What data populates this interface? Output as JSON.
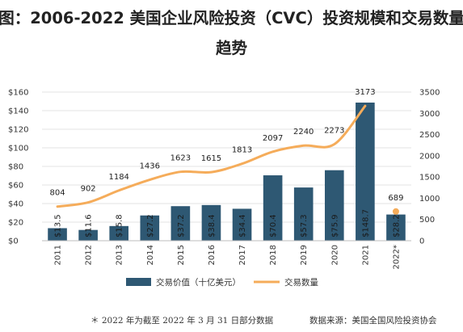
{
  "title": {
    "line1": "图：2006-2022 美国企业风险投资（CVC）投资规模和交易数量",
    "line2": "趋势"
  },
  "chart_data": {
    "type": "bar",
    "categories": [
      "2011",
      "2012",
      "2013",
      "2014",
      "2015",
      "2016",
      "2017",
      "2018",
      "2019",
      "2020",
      "2021",
      "2022*"
    ],
    "series": [
      {
        "name": "交易价值（十亿美元）",
        "type": "bar",
        "axis": "left",
        "values": [
          13.5,
          11.6,
          15.8,
          27.2,
          37.2,
          38.4,
          34.4,
          70.4,
          57.3,
          75.9,
          148.7,
          28.2
        ],
        "labels": [
          "$13.5",
          "$11.6",
          "$15.8",
          "$27.2",
          "$37.2",
          "$38.4",
          "$34.4",
          "$70.4",
          "$57.3",
          "$75.9",
          "$148.7",
          "$28.2"
        ]
      },
      {
        "name": "交易数量",
        "type": "line",
        "axis": "right",
        "values": [
          804,
          902,
          1184,
          1436,
          1623,
          1615,
          1813,
          2097,
          2240,
          2273,
          3173,
          null
        ],
        "labels": [
          "804",
          "902",
          "1184",
          "1436",
          "1623",
          "1615",
          "1813",
          "2097",
          "2240",
          "2273",
          "3173",
          ""
        ]
      },
      {
        "name": "",
        "type": "point",
        "axis": "right",
        "values": [
          null,
          null,
          null,
          null,
          null,
          null,
          null,
          null,
          null,
          null,
          null,
          689
        ],
        "labels": [
          "",
          "",
          "",
          "",
          "",
          "",
          "",
          "",
          "",
          "",
          "",
          "689"
        ]
      }
    ],
    "y_left": {
      "ylim": [
        0,
        160
      ],
      "ticks": [
        0,
        20,
        40,
        60,
        80,
        100,
        120,
        140,
        160
      ],
      "tick_labels": [
        "$0",
        "$20",
        "$40",
        "$60",
        "$80",
        "$100",
        "$120",
        "$140",
        "$160"
      ]
    },
    "y_right": {
      "ylim": [
        0,
        3500
      ],
      "ticks": [
        0,
        500,
        1000,
        1500,
        2000,
        2500,
        3000,
        3500
      ],
      "tick_labels": [
        "0",
        "500",
        "1000",
        "1500",
        "2000",
        "2500",
        "3000",
        "3500"
      ]
    },
    "grid": true,
    "legend_position": "bottom",
    "colors": {
      "bar": "#2e5873",
      "line": "#f5ac5a",
      "grid": "#e3e3e3"
    }
  },
  "footer": {
    "note": "＊ 2022 年为截至 2022 年 3 月 31 日部分数据",
    "source": "数据来源：美国全国风险投资协会"
  }
}
